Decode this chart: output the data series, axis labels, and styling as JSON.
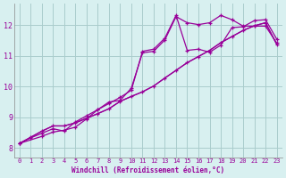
{
  "xlabel": "Windchill (Refroidissement éolien,°C)",
  "background_color": "#d8f0f0",
  "grid_color": "#aacccc",
  "line_color": "#990099",
  "xlim": [
    -0.5,
    23.5
  ],
  "ylim": [
    7.7,
    12.7
  ],
  "yticks": [
    8,
    9,
    10,
    11,
    12
  ],
  "xticks": [
    0,
    1,
    2,
    3,
    4,
    5,
    6,
    7,
    8,
    9,
    10,
    11,
    12,
    13,
    14,
    15,
    16,
    17,
    18,
    19,
    20,
    21,
    22,
    23
  ],
  "line1_x": [
    0,
    1,
    2,
    3,
    4,
    5,
    6,
    7,
    8,
    9,
    10,
    11,
    12,
    13,
    14,
    15,
    16,
    17,
    18,
    19,
    20,
    21,
    22,
    23
  ],
  "line1_y": [
    8.15,
    8.35,
    8.55,
    8.72,
    8.72,
    8.82,
    8.97,
    9.12,
    9.28,
    9.52,
    9.68,
    9.83,
    10.02,
    10.28,
    10.53,
    10.78,
    10.98,
    11.18,
    11.43,
    11.63,
    11.83,
    11.98,
    12.08,
    11.38
  ],
  "line2_x": [
    0,
    1,
    2,
    3,
    4,
    5,
    6,
    7,
    8,
    9,
    10,
    11,
    12,
    13,
    14,
    15,
    16,
    17,
    18,
    19,
    20,
    21,
    22,
    23
  ],
  "line2_y": [
    8.15,
    8.35,
    8.55,
    8.72,
    8.72,
    8.82,
    8.97,
    9.12,
    9.28,
    9.52,
    9.68,
    9.83,
    10.02,
    10.28,
    10.53,
    10.78,
    10.98,
    11.18,
    11.43,
    11.63,
    11.83,
    11.98,
    12.08,
    11.38
  ],
  "line3_x": [
    0,
    2,
    3,
    4,
    5,
    6,
    7,
    8,
    9,
    10,
    11,
    12,
    13,
    14,
    15,
    16,
    17,
    18,
    19,
    20,
    21,
    22,
    23
  ],
  "line3_y": [
    8.15,
    8.38,
    8.52,
    8.58,
    8.68,
    8.95,
    9.25,
    9.5,
    9.55,
    9.95,
    11.1,
    11.15,
    11.52,
    12.28,
    12.08,
    12.02,
    12.08,
    12.32,
    12.18,
    11.97,
    11.97,
    11.97,
    11.42
  ],
  "line4_x": [
    0,
    1,
    2,
    3,
    4,
    5,
    6,
    7,
    8,
    9,
    10,
    11,
    12,
    13,
    14,
    15,
    16,
    17,
    18,
    19,
    20,
    21,
    22,
    23
  ],
  "line4_y": [
    8.15,
    8.33,
    8.48,
    8.63,
    8.55,
    8.85,
    9.05,
    9.25,
    9.45,
    9.65,
    9.88,
    11.15,
    11.22,
    11.58,
    12.32,
    11.18,
    11.22,
    11.12,
    11.35,
    11.92,
    11.95,
    12.15,
    12.18,
    11.55
  ]
}
